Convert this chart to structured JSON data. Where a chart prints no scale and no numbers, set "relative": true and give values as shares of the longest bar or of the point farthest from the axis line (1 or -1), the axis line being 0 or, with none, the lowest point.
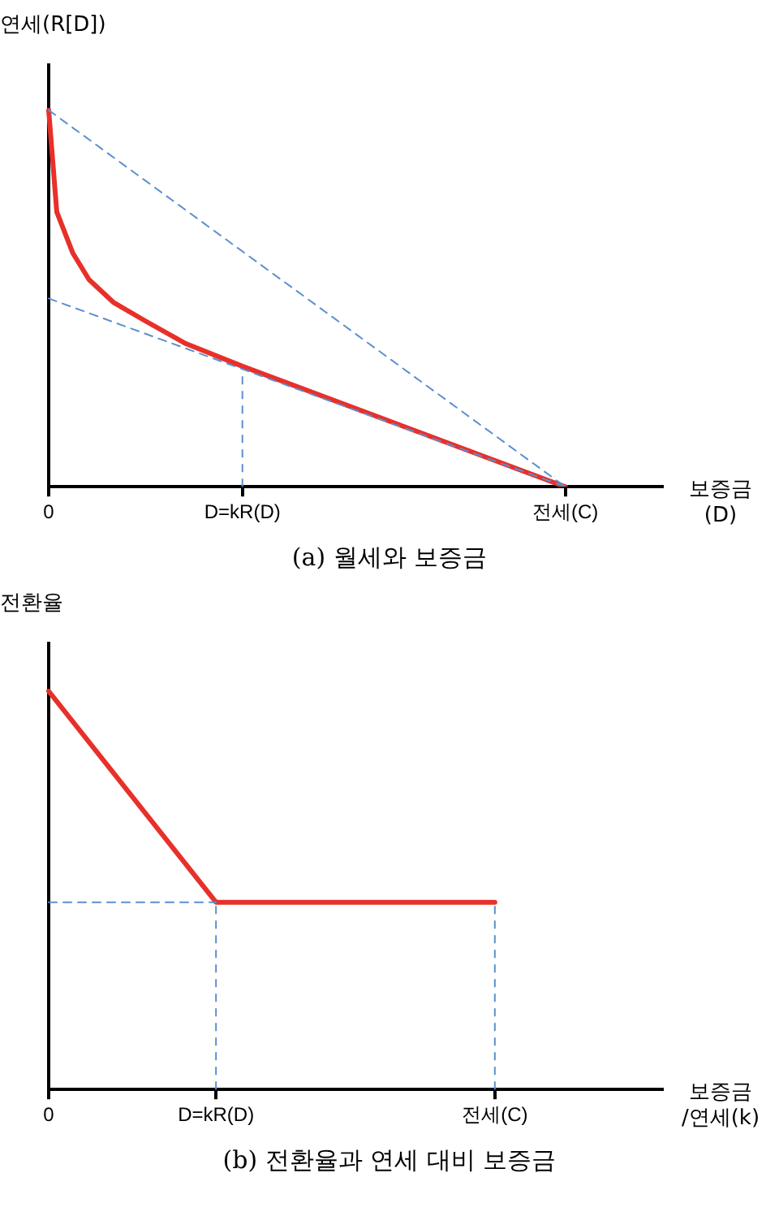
{
  "chart_data": [
    {
      "type": "line",
      "title": "(a) 월세와 보증금",
      "ylabel": "연세(R[D])",
      "xlabel": "보증금\n(D)",
      "relative": true,
      "legend": false,
      "grid": false,
      "marker": "none",
      "categories": [
        "0",
        null,
        null,
        null,
        null,
        null,
        null,
        null,
        null,
        null,
        null,
        null,
        null,
        null,
        null,
        null,
        null,
        null,
        null,
        null,
        null,
        null,
        null,
        null,
        "D=kR(D)",
        null,
        null,
        null,
        null,
        null,
        null,
        null,
        null,
        null,
        null,
        null,
        null,
        null,
        null,
        null,
        null,
        null,
        null,
        null,
        null,
        null,
        null,
        null,
        null,
        null,
        null,
        null,
        null,
        null,
        null,
        null,
        null,
        null,
        null,
        null,
        null,
        null,
        null,
        null,
        "전세(C)",
        null,
        null,
        null,
        null,
        null,
        null,
        null,
        null,
        null,
        null,
        null,
        null
      ],
      "ref_lines": [
        {
          "axis": "x",
          "value": "D=kR(D)",
          "color": "#5b8fd0",
          "line_style": "dashed"
        }
      ],
      "series": [
        {
          "color": "#5b8fd0",
          "line_style": "dashed",
          "values": [
            1,
            null,
            null,
            null,
            null,
            null,
            null,
            null,
            null,
            null,
            null,
            null,
            null,
            null,
            null,
            null,
            null,
            null,
            null,
            null,
            null,
            null,
            null,
            null,
            null,
            null,
            null,
            null,
            null,
            null,
            null,
            null,
            null,
            null,
            null,
            null,
            null,
            null,
            null,
            null,
            null,
            null,
            null,
            null,
            null,
            null,
            null,
            null,
            null,
            null,
            null,
            null,
            null,
            null,
            null,
            null,
            null,
            null,
            null,
            null,
            null,
            null,
            null,
            null,
            0,
            null,
            null,
            null,
            null,
            null,
            null,
            null,
            null,
            null,
            null,
            null,
            null
          ]
        },
        {
          "color": "#5b8fd0",
          "line_style": "dashed",
          "values": [
            0.5,
            null,
            null,
            null,
            null,
            null,
            null,
            null,
            null,
            null,
            null,
            null,
            null,
            null,
            null,
            null,
            null,
            null,
            null,
            null,
            null,
            null,
            null,
            null,
            null,
            null,
            null,
            null,
            null,
            null,
            null,
            null,
            null,
            null,
            null,
            null,
            null,
            null,
            null,
            null,
            null,
            null,
            null,
            null,
            null,
            null,
            null,
            null,
            null,
            null,
            null,
            null,
            null,
            null,
            null,
            null,
            null,
            null,
            null,
            null,
            null,
            null,
            null,
            null,
            0,
            null,
            null,
            null,
            null,
            null,
            null,
            null,
            null,
            null,
            null,
            null,
            null
          ]
        },
        {
          "color": "#e8302a",
          "line_style": "solid",
          "values": [
            1,
            0.73,
            null,
            0.62,
            null,
            0.55,
            null,
            null,
            0.49,
            null,
            null,
            null,
            0.44,
            null,
            null,
            null,
            null,
            0.38,
            null,
            null,
            null,
            null,
            null,
            null,
            0.32,
            null,
            null,
            null,
            null,
            null,
            null,
            null,
            null,
            null,
            null,
            null,
            null,
            null,
            null,
            null,
            null,
            null,
            null,
            null,
            null,
            null,
            null,
            null,
            null,
            null,
            null,
            null,
            null,
            null,
            null,
            null,
            null,
            null,
            null,
            null,
            null,
            null,
            null,
            null,
            0,
            null,
            null,
            null,
            null,
            null,
            null,
            null,
            null,
            null,
            null,
            null,
            null
          ]
        }
      ]
    },
    {
      "type": "line",
      "title": "(b) 전환율과 연세 대비 보증금",
      "ylabel": "전환율",
      "xlabel": "보증금\n/연세(k)",
      "relative": true,
      "legend": false,
      "grid": false,
      "marker": "none",
      "categories": [
        "0",
        null,
        null,
        "D=kR(D)",
        null,
        null,
        null,
        null,
        "전세(C)",
        null,
        null,
        null
      ],
      "ref_lines": [
        {
          "axis": "x",
          "value": "D=kR(D)",
          "color": "#5b8fd0",
          "line_style": "dashed"
        },
        {
          "axis": "x",
          "value": "전세(C)",
          "color": "#5b8fd0",
          "line_style": "dashed"
        }
      ],
      "series": [
        {
          "color": "#5b8fd0",
          "line_style": "dashed",
          "values": [
            0.47,
            null,
            null,
            0.47,
            null,
            null,
            null,
            null,
            null,
            null,
            null,
            null
          ]
        },
        {
          "color": "#e8302a",
          "line_style": "solid",
          "values": [
            1,
            null,
            null,
            0.47,
            null,
            null,
            null,
            null,
            0.47,
            null,
            null,
            null
          ]
        }
      ]
    }
  ]
}
